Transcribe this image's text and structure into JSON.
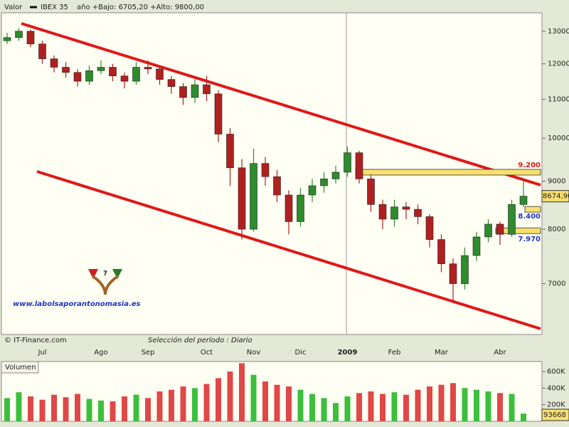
{
  "chart_data": [
    {
      "type": "candlestick",
      "header_label": "Valor",
      "title": "IBEX 35",
      "subtitle": "año +Bajo: 6705,20 +Alto: 9800,00",
      "source": "© IT-Finance.com",
      "period": "Selección del período : Diario",
      "watermark": "www.labolsaporantonomasia.es",
      "categories": [
        null,
        null,
        null,
        "Jul",
        null,
        null,
        null,
        null,
        "Ago",
        null,
        null,
        null,
        "Sep",
        null,
        null,
        null,
        null,
        "Oct",
        null,
        null,
        null,
        "Nov",
        null,
        null,
        null,
        "Dic",
        null,
        null,
        null,
        "2009",
        null,
        null,
        null,
        "Feb",
        null,
        null,
        null,
        "Mar",
        null,
        null,
        null,
        null,
        "Abr",
        null,
        null
      ],
      "open": [
        12700,
        12800,
        13000,
        12600,
        12150,
        11900,
        11750,
        11500,
        11800,
        11900,
        11650,
        11500,
        11900,
        11850,
        11550,
        11350,
        11050,
        11400,
        11150,
        10100,
        9300,
        8000,
        9400,
        9100,
        8700,
        8150,
        8700,
        8900,
        9050,
        9200,
        9650,
        9050,
        8500,
        8200,
        8450,
        8400,
        8250,
        7800,
        7350,
        7000,
        7500,
        7850,
        8100,
        7900,
        8500
      ],
      "high": [
        12950,
        13100,
        13050,
        12700,
        12250,
        12050,
        11850,
        11950,
        12100,
        12000,
        11750,
        12050,
        12100,
        11950,
        11650,
        11450,
        11550,
        11650,
        11250,
        10250,
        9500,
        9750,
        9550,
        9250,
        8800,
        8850,
        9050,
        9200,
        9350,
        9800,
        9700,
        9150,
        8600,
        8600,
        8550,
        8500,
        8300,
        7900,
        7450,
        7650,
        7950,
        8200,
        8150,
        8600,
        9050
      ],
      "low": [
        12600,
        12700,
        12500,
        12000,
        11750,
        11600,
        11350,
        11400,
        11700,
        11500,
        11300,
        11400,
        11700,
        11400,
        11150,
        10850,
        10900,
        10950,
        9900,
        8900,
        7800,
        7950,
        8900,
        8550,
        7900,
        8050,
        8550,
        8750,
        8950,
        9100,
        8950,
        8350,
        8000,
        8050,
        8200,
        8100,
        7650,
        7200,
        6705,
        6900,
        7400,
        7750,
        7700,
        7850,
        8450
      ],
      "close": [
        12800,
        13000,
        12600,
        12150,
        11900,
        11750,
        11500,
        11800,
        11900,
        11650,
        11500,
        11900,
        11850,
        11550,
        11350,
        11050,
        11400,
        11150,
        10100,
        9300,
        8000,
        9400,
        9100,
        8700,
        8150,
        8700,
        8900,
        9050,
        9200,
        9650,
        9050,
        8500,
        8200,
        8450,
        8400,
        8250,
        7800,
        7350,
        7000,
        7500,
        7850,
        8100,
        7900,
        8500,
        8675
      ],
      "up_color": "#2e8b2e",
      "down_color": "#b02020",
      "log_scale": true,
      "ylim": [
        6180,
        13600
      ],
      "yticks": [
        7000,
        8000,
        9000,
        10000,
        11000,
        12000,
        13000
      ],
      "last_price": {
        "value": 8674.9,
        "label": "8674,90"
      },
      "levels": [
        {
          "value": 9200,
          "label": "9.200",
          "color": "#e01818"
        },
        {
          "value": 8400,
          "label": "8.400",
          "color": "#2038c0"
        },
        {
          "value": 7970,
          "label": "7.970",
          "color": "#2038c0"
        }
      ]
    },
    {
      "type": "bar",
      "title": "Volumen",
      "values": [
        280000,
        350000,
        300000,
        260000,
        320000,
        290000,
        330000,
        270000,
        250000,
        240000,
        300000,
        320000,
        280000,
        360000,
        380000,
        420000,
        400000,
        450000,
        520000,
        600000,
        700000,
        560000,
        480000,
        440000,
        420000,
        380000,
        330000,
        280000,
        220000,
        300000,
        340000,
        360000,
        330000,
        350000,
        320000,
        380000,
        420000,
        440000,
        460000,
        400000,
        380000,
        360000,
        340000,
        330000,
        93668
      ],
      "up_color": "#3cbf3c",
      "down_color": "#e04848",
      "ylim": [
        0,
        720000
      ],
      "yticks": [
        {
          "value": 200000,
          "label": "200K"
        },
        {
          "value": 400000,
          "label": "400K"
        },
        {
          "value": 600000,
          "label": "600K"
        }
      ]
    }
  ]
}
